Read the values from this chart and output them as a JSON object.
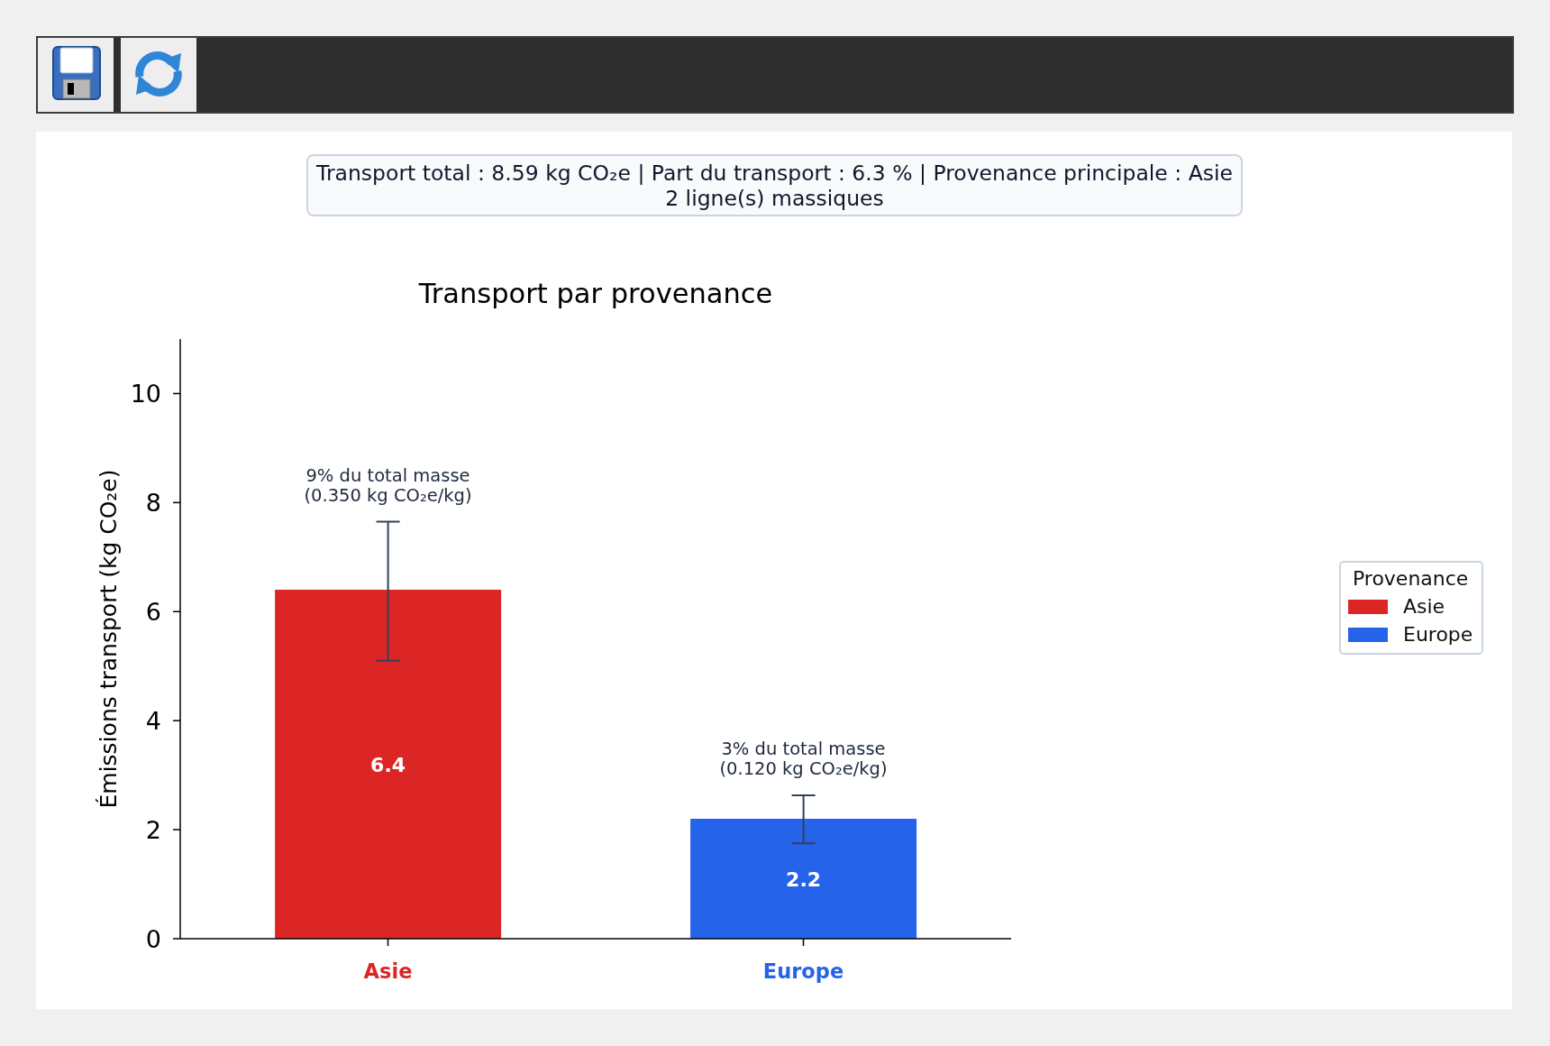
{
  "chart_data": [
    {
      "type": "other",
      "annotations": [
        "Transport total : 8.59 kg CO₂e | Part du transport : 6.3 % | Provenance principale : Asie",
        "2 ligne(s) massiques"
      ]
    },
    {
      "type": "bar",
      "title": "Transport par provenance",
      "ylabel": "Émissions transport (kg CO₂e)",
      "legend_title": "Provenance",
      "categories": [
        "Asie",
        "Europe"
      ],
      "series": [
        {
          "name": "Asie",
          "color": "#dc2626",
          "values": [
            6.4,
            null
          ],
          "errors": [
            [
              5.1,
              7.65
            ],
            null
          ]
        },
        {
          "name": "Europe",
          "color": "#2563eb",
          "values": [
            null,
            2.2
          ],
          "errors": [
            null,
            [
              1.75,
              2.63
            ]
          ]
        }
      ],
      "data_labels": true,
      "ylim": [
        0,
        11
      ],
      "yticks": [
        0,
        2,
        4,
        6,
        8,
        10
      ],
      "legend": "right",
      "annotations": [
        "9% du total masse\n(0.350 kg CO₂e/kg)",
        "3% du total masse\n(0.120 kg CO₂e/kg)"
      ]
    }
  ]
}
